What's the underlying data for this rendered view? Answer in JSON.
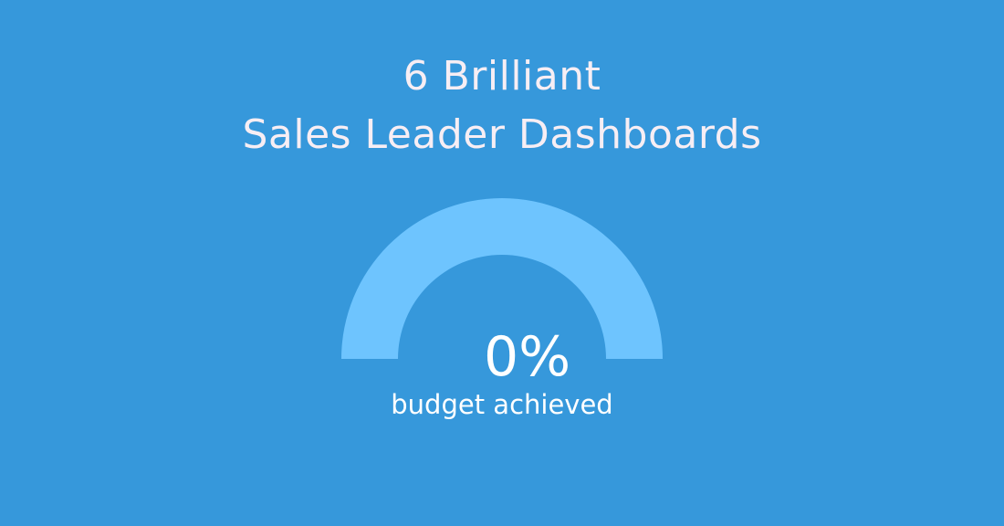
{
  "title": {
    "line1": "6 Brilliant",
    "line2": "Sales Leader Dashboards"
  },
  "gauge": {
    "value_text": "0%",
    "value": 0,
    "label": "budget achieved",
    "track_color": "#6ec4fe",
    "fill_color": "#3698db"
  },
  "background_color": "#3698db"
}
